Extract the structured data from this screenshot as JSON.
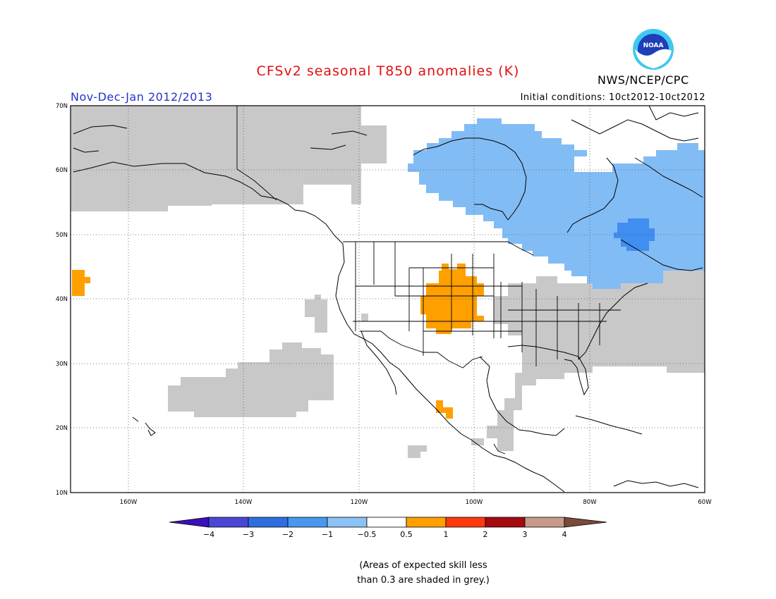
{
  "title": "CFSv2 seasonal T850 anomalies (K)",
  "season": "Nov-Dec-Jan 2012/2013",
  "initial_conditions": "Initial conditions: 10ct2012-10ct2012",
  "org": "NWS/NCEP/CPC",
  "logo_text": "NOAA",
  "axes": {
    "lat_labels": [
      "70N",
      "60N",
      "50N",
      "40N",
      "30N",
      "20N",
      "10N"
    ],
    "lon_labels": [
      "160W",
      "140W",
      "120W",
      "100W",
      "80W",
      "60W"
    ]
  },
  "colorbar": {
    "labels": [
      "−4",
      "−3",
      "−2",
      "−1",
      "−0.5",
      "0.5",
      "1",
      "2",
      "3",
      "4"
    ],
    "colors": [
      "#3b10b8",
      "#4a47d6",
      "#2e6fe0",
      "#4897ee",
      "#8cc2f5",
      "#ffffff",
      "#ff9f00",
      "#ff3810",
      "#a50a10",
      "#c89a8a",
      "#7a4a3a"
    ]
  },
  "note": {
    "line1": "(Areas of expected skill less",
    "line2": "than 0.3 are shaded in grey.)"
  },
  "colors": {
    "grey": "#c8c8c8",
    "light_blue": "#82bcf5",
    "mid_blue": "#3f8ef0",
    "orange": "#ff9f00"
  }
}
